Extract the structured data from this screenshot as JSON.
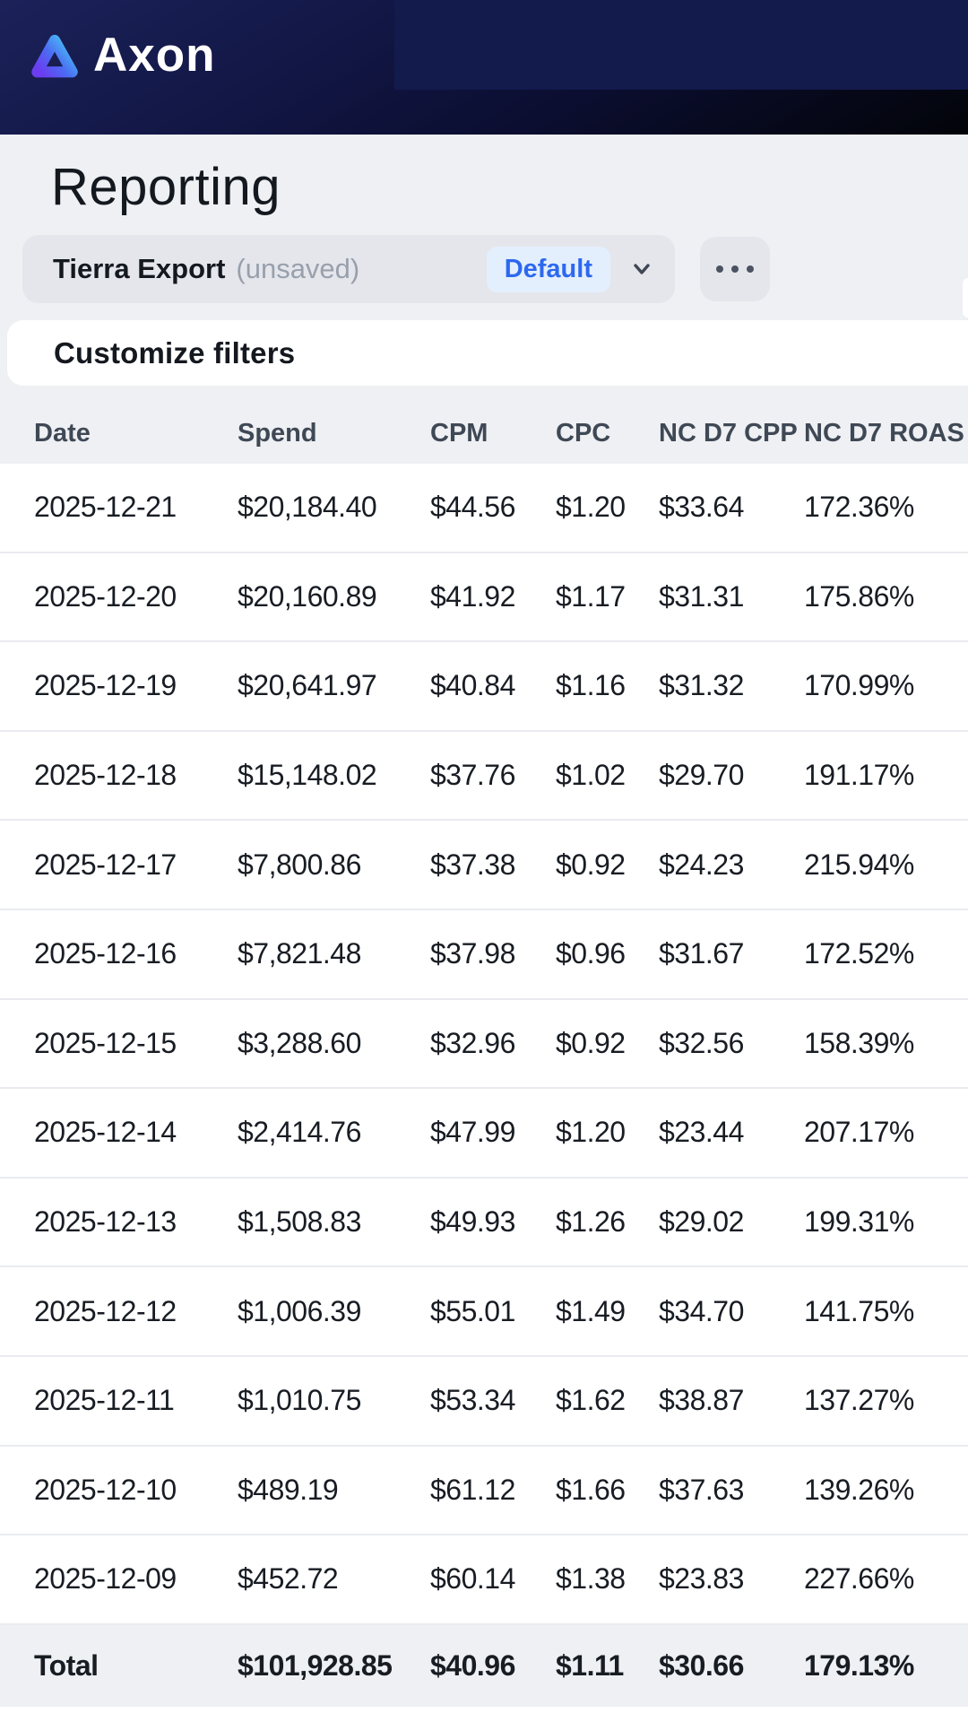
{
  "header": {
    "brand": "Axon"
  },
  "page": {
    "title": "Reporting"
  },
  "report_selector": {
    "name": "Tierra Export",
    "status": "(unsaved)",
    "view_label": "Default",
    "expand_icon": "chevron-down",
    "more_icon": "ellipsis"
  },
  "filters": {
    "title": "Customize filters"
  },
  "table": {
    "columns": [
      "Date",
      "Spend",
      "CPM",
      "CPC",
      "NC D7 CPP",
      "NC D7 ROAS"
    ],
    "rows": [
      [
        "2025-12-21",
        "$20,184.40",
        "$44.56",
        "$1.20",
        "$33.64",
        "172.36%"
      ],
      [
        "2025-12-20",
        "$20,160.89",
        "$41.92",
        "$1.17",
        "$31.31",
        "175.86%"
      ],
      [
        "2025-12-19",
        "$20,641.97",
        "$40.84",
        "$1.16",
        "$31.32",
        "170.99%"
      ],
      [
        "2025-12-18",
        "$15,148.02",
        "$37.76",
        "$1.02",
        "$29.70",
        "191.17%"
      ],
      [
        "2025-12-17",
        "$7,800.86",
        "$37.38",
        "$0.92",
        "$24.23",
        "215.94%"
      ],
      [
        "2025-12-16",
        "$7,821.48",
        "$37.98",
        "$0.96",
        "$31.67",
        "172.52%"
      ],
      [
        "2025-12-15",
        "$3,288.60",
        "$32.96",
        "$0.92",
        "$32.56",
        "158.39%"
      ],
      [
        "2025-12-14",
        "$2,414.76",
        "$47.99",
        "$1.20",
        "$23.44",
        "207.17%"
      ],
      [
        "2025-12-13",
        "$1,508.83",
        "$49.93",
        "$1.26",
        "$29.02",
        "199.31%"
      ],
      [
        "2025-12-12",
        "$1,006.39",
        "$55.01",
        "$1.49",
        "$34.70",
        "141.75%"
      ],
      [
        "2025-12-11",
        "$1,010.75",
        "$53.34",
        "$1.62",
        "$38.87",
        "137.27%"
      ],
      [
        "2025-12-10",
        "$489.19",
        "$61.12",
        "$1.66",
        "$37.63",
        "139.26%"
      ],
      [
        "2025-12-09",
        "$452.72",
        "$60.14",
        "$1.38",
        "$23.83",
        "227.66%"
      ]
    ],
    "total": [
      "Total",
      "$101,928.85",
      "$40.96",
      "$1.11",
      "$30.66",
      "179.13%"
    ]
  },
  "colors": {
    "page_bg": "#eef0f3",
    "header_navy": "#131848",
    "header_accent_panel": "#131a4c",
    "pill_bg": "#e4e6ec",
    "chip_bg": "#e4effe",
    "chip_text": "#2d68ef",
    "row_divider": "#e9ebf0",
    "body_text": "#181c23",
    "muted_text": "#99a0ac",
    "logo_gradient_start": "#6a3ef0",
    "logo_gradient_end": "#4ac8f6"
  }
}
